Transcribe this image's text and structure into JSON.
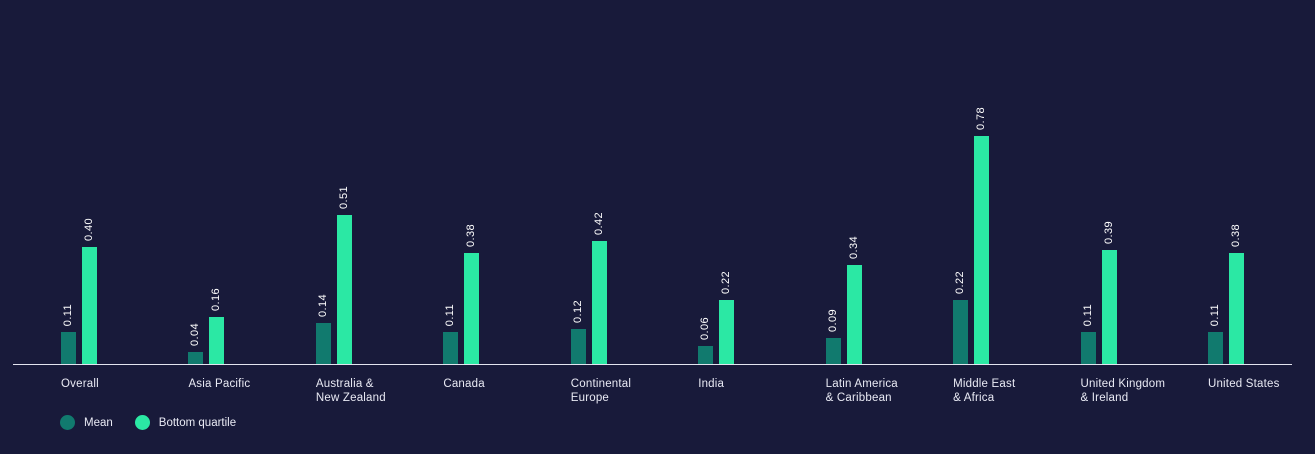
{
  "colors": {
    "background": "#181a3a",
    "mean": "#117a6e",
    "bottom_quartile": "#2be8a4",
    "axis_line": "#e3e4ef",
    "category_label": "#e9eaf4",
    "value_label": "#ffffff",
    "legend_text": "#e9eaf4"
  },
  "chart_data": {
    "type": "bar",
    "title": "",
    "xlabel": "",
    "ylabel": "",
    "ylim": [
      0,
      0.8
    ],
    "grid": false,
    "axis_ticks_visible": false,
    "value_label_rotation": 90,
    "value_label_format": "2-decimals",
    "legend_position": "bottom-left",
    "categories": [
      "Overall",
      "Asia Pacific",
      "Australia &\nNew Zealand",
      "Canada",
      "Continental\nEurope",
      "India",
      "Latin America\n& Caribbean",
      "Middle East\n& Africa",
      "United Kingdom\n& Ireland",
      "United States"
    ],
    "series": [
      {
        "name": "Mean",
        "color_key": "mean",
        "values": [
          0.11,
          0.04,
          0.14,
          0.11,
          0.12,
          0.06,
          0.09,
          0.22,
          0.11,
          0.11
        ]
      },
      {
        "name": "Bottom quartile",
        "color_key": "bottom_quartile",
        "values": [
          0.4,
          0.16,
          0.51,
          0.38,
          0.42,
          0.22,
          0.34,
          0.78,
          0.39,
          0.38
        ]
      }
    ]
  },
  "legend": {
    "items": [
      {
        "label": "Mean"
      },
      {
        "label": "Bottom quartile"
      }
    ]
  }
}
